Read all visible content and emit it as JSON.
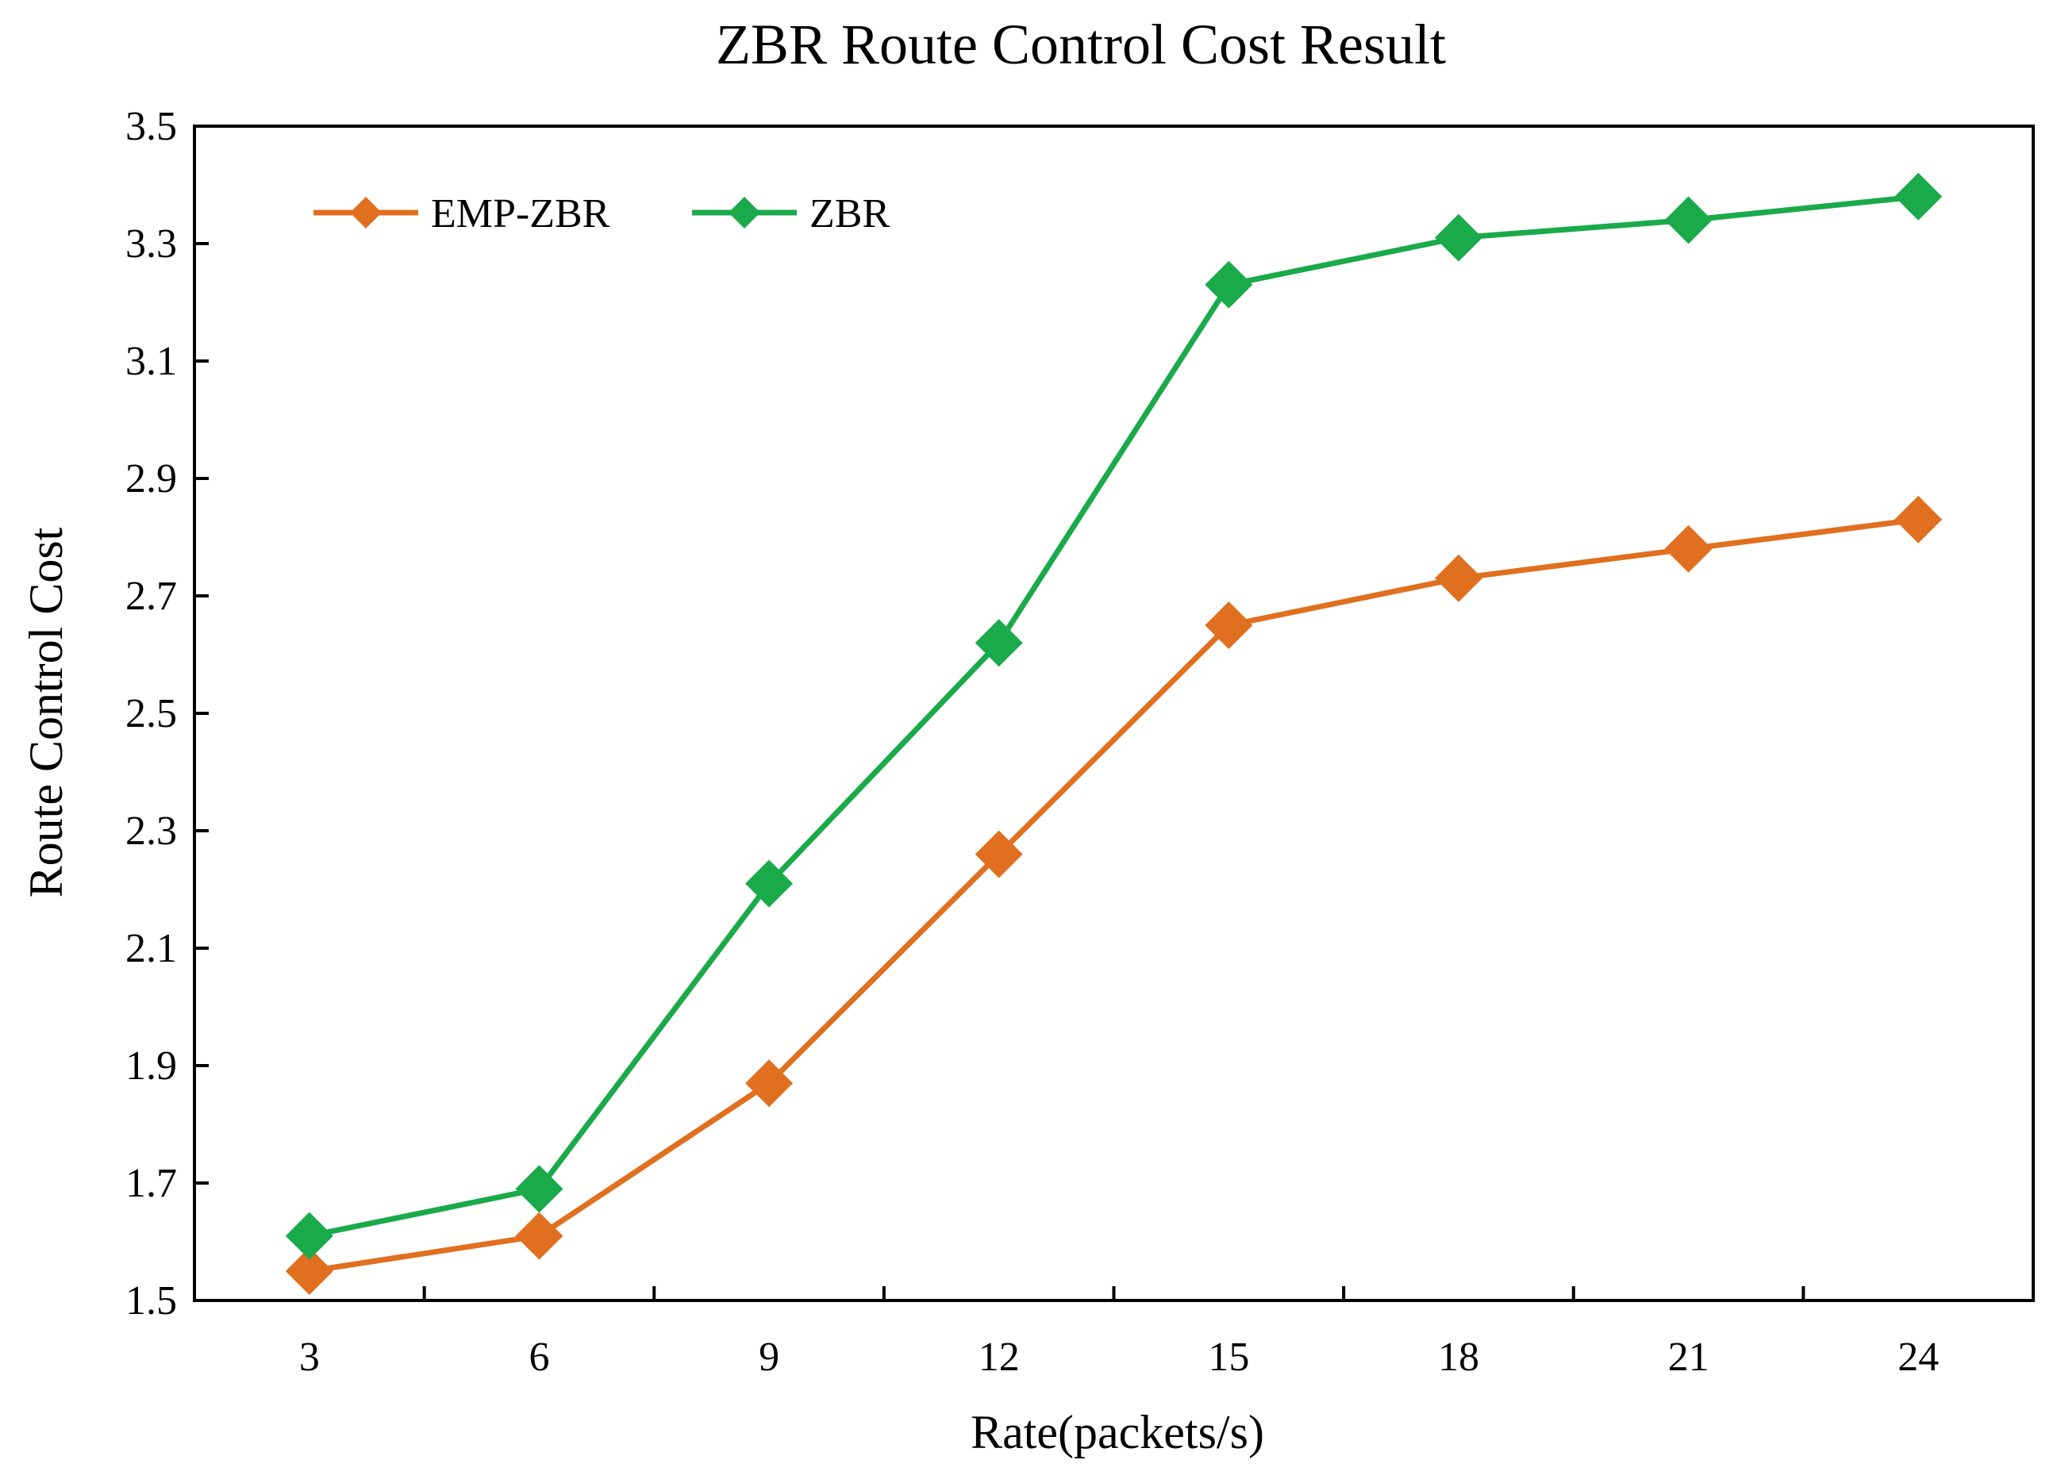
{
  "chart_data": {
    "type": "line",
    "title": "ZBR Route Control Cost Result",
    "xlabel": "Rate(packets/s)",
    "ylabel": "Route Control Cost",
    "categories": [
      "3",
      "6",
      "9",
      "12",
      "15",
      "18",
      "21",
      "24"
    ],
    "x": [
      3,
      6,
      9,
      12,
      15,
      18,
      21,
      24
    ],
    "xlim": [
      1.5,
      25.5
    ],
    "ylim": [
      1.5,
      3.5
    ],
    "yticks": [
      "1.5",
      "1.7",
      "1.9",
      "2.1",
      "2.3",
      "2.5",
      "2.7",
      "2.9",
      "3.1",
      "3.3",
      "3.5"
    ],
    "grid": false,
    "legend_position": "top-left",
    "series": [
      {
        "name": "EMP-ZBR",
        "color": "#e07020",
        "marker": "diamond",
        "values": [
          1.55,
          1.61,
          1.87,
          2.26,
          2.65,
          2.73,
          2.78,
          2.83
        ]
      },
      {
        "name": "ZBR",
        "color": "#1aaa4a",
        "marker": "diamond",
        "values": [
          1.61,
          1.69,
          2.21,
          2.62,
          3.23,
          3.31,
          3.34,
          3.38
        ]
      }
    ]
  }
}
